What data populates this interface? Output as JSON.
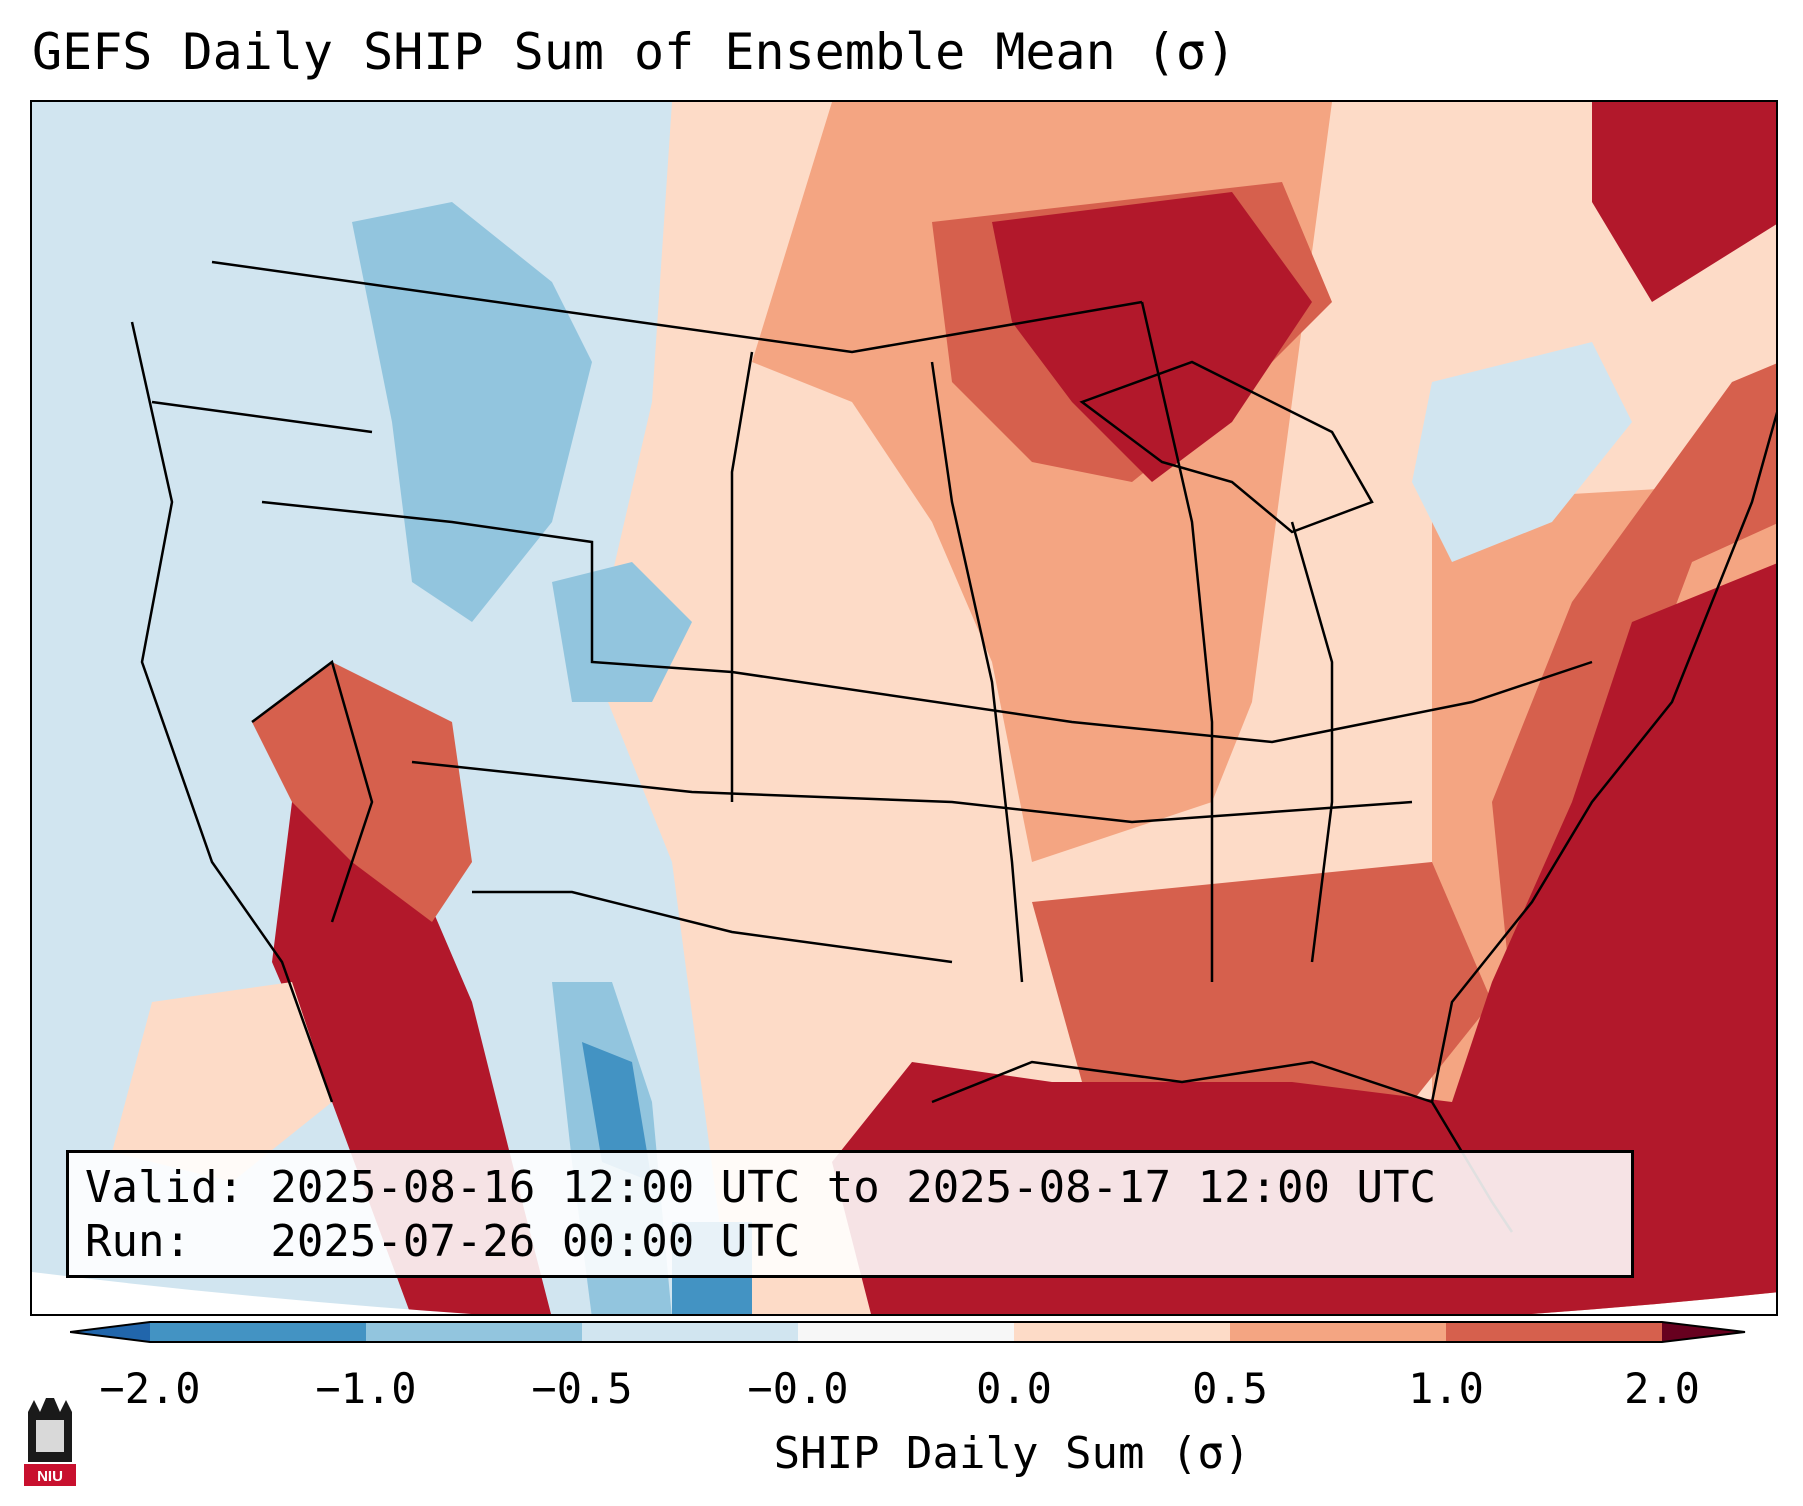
{
  "title": "GEFS Daily SHIP Sum of Ensemble Mean (σ)",
  "info": {
    "valid_line": "Valid: 2025-08-16 12:00 UTC to 2025-08-17 12:00 UTC",
    "run_line": "Run:   2025-07-26 00:00 UTC"
  },
  "colorbar": {
    "label": "SHIP Daily Sum (σ)",
    "ticks": [
      "−2.0",
      "−1.0",
      "−0.5",
      "−0.0",
      "0.0",
      "0.5",
      "1.0",
      "2.0"
    ],
    "colors": [
      "#4393c3",
      "#92c5de",
      "#d1e5f0",
      "#f7f7f7",
      "#fddbc7",
      "#f4a582",
      "#d6604d",
      "#b2182b"
    ],
    "under_color": "#2166ac",
    "over_color": "#67001f"
  },
  "logo": {
    "text": "NIU"
  }
}
